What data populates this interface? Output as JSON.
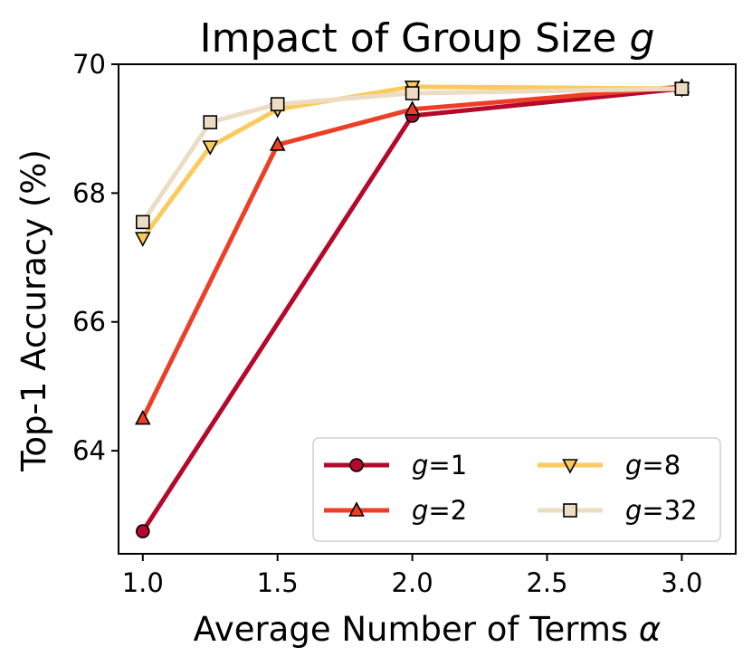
{
  "chart_data": {
    "type": "line",
    "title": "Impact of Group Size",
    "title_var": "g",
    "xlabel": "Average Number of Terms",
    "xlabel_var": "α",
    "ylabel": "Top-1 Accuracy (%)",
    "xlim": [
      0.91,
      3.2
    ],
    "ylim": [
      62.4,
      70.0
    ],
    "xticks": [
      1.0,
      1.5,
      2.0,
      2.5,
      3.0
    ],
    "xtick_labels": [
      "1.0",
      "1.5",
      "2.0",
      "2.5",
      "3.0"
    ],
    "yticks": [
      64,
      66,
      68,
      70
    ],
    "ytick_labels": [
      "64",
      "66",
      "68",
      "70"
    ],
    "grid": false,
    "legend_position": "lower-right",
    "series": [
      {
        "name_var": "g",
        "name_suffix": "=1",
        "color": "#b5082a",
        "marker": "circle",
        "x": [
          1.0,
          2.0,
          3.0
        ],
        "y": [
          62.75,
          69.2,
          69.62
        ]
      },
      {
        "name_var": "g",
        "name_suffix": "=2",
        "color": "#ee3e25",
        "marker": "triangle-up",
        "x": [
          1.0,
          1.5,
          2.0,
          3.0
        ],
        "y": [
          64.5,
          68.75,
          69.3,
          69.65
        ]
      },
      {
        "name_var": "g",
        "name_suffix": "=8",
        "color": "#fcca5c",
        "marker": "triangle-down",
        "x": [
          1.0,
          1.25,
          1.5,
          2.0,
          3.0
        ],
        "y": [
          67.3,
          68.72,
          69.3,
          69.65,
          69.62
        ]
      },
      {
        "name_var": "g",
        "name_suffix": "=32",
        "color": "#ecdcc4",
        "marker": "square",
        "x": [
          1.0,
          1.25,
          1.5,
          2.0,
          3.0
        ],
        "y": [
          67.55,
          69.1,
          69.38,
          69.55,
          69.62
        ]
      }
    ]
  }
}
